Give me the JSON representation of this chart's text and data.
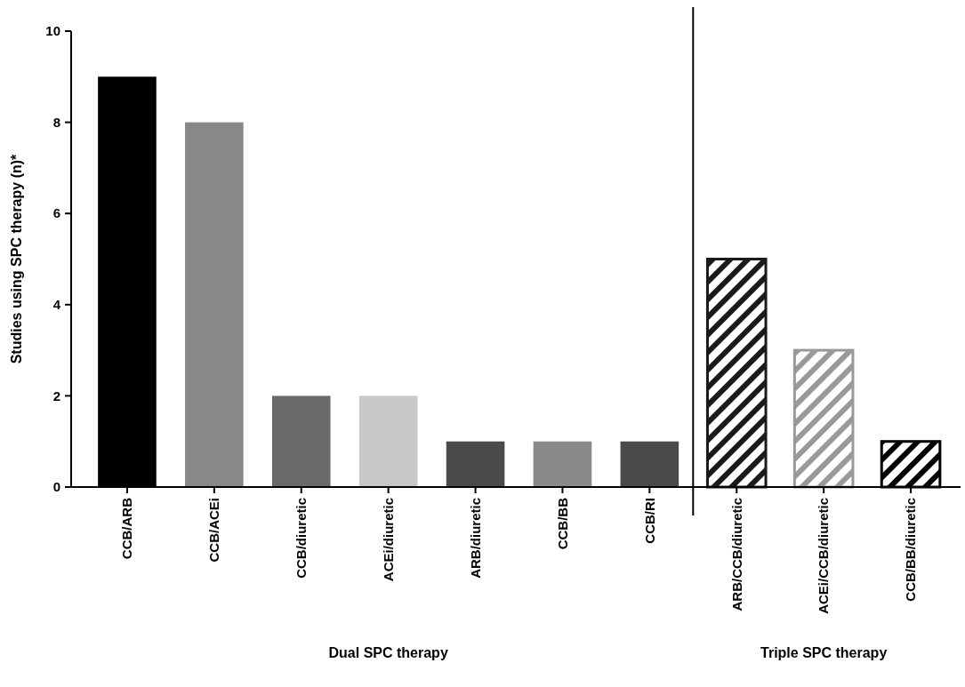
{
  "chart_data": {
    "type": "bar",
    "ylabel": "Studies using SPC therapy (n)*",
    "categories": [
      "CCB/ARB",
      "CCB/ACEi",
      "CCB/diuretic",
      "ACEi/diuretic",
      "ARB/diuretic",
      "CCB/BB",
      "CCB/RI",
      "ARB/CCB/diuretic",
      "ACEi/CCB/diuretic",
      "CCB/BB/diuretic"
    ],
    "series": [
      {
        "colors": [
          "#000000",
          "#888888",
          "#6a6a6a",
          "#c8c8c8",
          "#4a4a4a",
          "#8a8a8a",
          "#4a4a4a",
          null,
          null,
          null
        ],
        "values": [
          9,
          8,
          2,
          2,
          1,
          1,
          1,
          null,
          null,
          null
        ]
      },
      {
        "colors": [
          null,
          null,
          null,
          null,
          null,
          null,
          null,
          "#1a1a1a",
          "#999999",
          "#000000"
        ],
        "values": [
          null,
          null,
          null,
          null,
          null,
          null,
          null,
          5,
          3,
          1
        ]
      }
    ],
    "annotations": [
      "Dual SPC therapy",
      "Triple SPC therapy"
    ],
    "ylim": [
      0,
      10
    ],
    "yticks": [
      0,
      2,
      4,
      6,
      8,
      10
    ],
    "grid": false
  }
}
